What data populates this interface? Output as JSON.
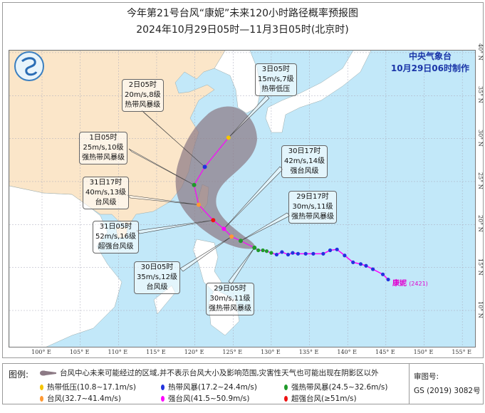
{
  "header": {
    "title": "今年第21号台风“康妮”未来120小时路径概率预报图",
    "subtitle": "2024年10月29日05时—11月3日05时(北京时)"
  },
  "agency": {
    "name": "中央气象台",
    "issued": "10月29日06时制作"
  },
  "storm": {
    "name": "康妮",
    "number": "(2421)"
  },
  "colors": {
    "sea": "#c2e8f9",
    "china_land": "#fbe6c9",
    "other_land": "#ffffff",
    "track": "#ff00ff",
    "cone": "#8c7a85",
    "tropical_depression": "#f5c400",
    "tropical_storm": "#2233dd",
    "severe_tropical_storm": "#1f9a2a",
    "typhoon": "#ff9933",
    "severe_typhoon": "#ff00ff",
    "super_typhoon": "#ee1111"
  },
  "axes": {
    "lon_labels": [
      "100° E",
      "105° E",
      "110° E",
      "115° E",
      "120° E",
      "125° E",
      "130° E",
      "135° E",
      "140° E",
      "145° E",
      "150° E",
      "155° E"
    ],
    "lon_values": [
      100,
      105,
      110,
      115,
      120,
      125,
      130,
      135,
      140,
      145,
      150,
      155
    ],
    "lat_labels": [
      "40° N",
      "35° N",
      "30° N",
      "25° N",
      "20° N",
      "15° N",
      "10° N"
    ],
    "lat_values": [
      40,
      35,
      30,
      25,
      20,
      15,
      10
    ]
  },
  "forecast": [
    {
      "time": "29日05时",
      "wind": "30m/s,11级",
      "level": "强热带风暴级",
      "cat": "severe_tropical_storm",
      "lon": 127.8,
      "lat": 17.3
    },
    {
      "time": "29日17时",
      "wind": "30m/s,11级",
      "level": "强热带风暴级",
      "cat": "severe_tropical_storm",
      "lon": 126.0,
      "lat": 18.1
    },
    {
      "time": "30日05时",
      "wind": "35m/s,12级",
      "level": "台风级",
      "cat": "typhoon",
      "lon": 124.8,
      "lat": 18.6
    },
    {
      "time": "30日17时",
      "wind": "42m/s,14级",
      "level": "强台风级",
      "cat": "severe_typhoon",
      "lon": 123.8,
      "lat": 19.5
    },
    {
      "time": "31日05时",
      "wind": "52m/s,16级",
      "level": "超强台风级",
      "cat": "super_typhoon",
      "lon": 122.4,
      "lat": 20.5
    },
    {
      "time": "31日17时",
      "wind": "40m/s,13级",
      "level": "台风级",
      "cat": "typhoon",
      "lon": 120.5,
      "lat": 22.3
    },
    {
      "time": "1日05时",
      "wind": "25m/s,10级",
      "level": "强热带风暴级",
      "cat": "severe_tropical_storm",
      "lon": 119.9,
      "lat": 24.6
    },
    {
      "time": "2日05时",
      "wind": "20m/s,8级",
      "level": "热带风暴级",
      "cat": "tropical_storm",
      "lon": 121.3,
      "lat": 26.7
    },
    {
      "time": "3日05时",
      "wind": "15m/s,7级",
      "level": "热带低压",
      "cat": "tropical_depression",
      "lon": 124.4,
      "lat": 30.1
    }
  ],
  "past_track": [
    {
      "lon": 145.3,
      "lat": 13.6,
      "cat": "tropical_storm"
    },
    {
      "lon": 144.6,
      "lat": 14.2,
      "cat": "tropical_storm"
    },
    {
      "lon": 143.3,
      "lat": 14.8,
      "cat": "tropical_storm"
    },
    {
      "lon": 142.4,
      "lat": 15.2,
      "cat": "tropical_storm"
    },
    {
      "lon": 141.7,
      "lat": 15.4,
      "cat": "tropical_storm"
    },
    {
      "lon": 140.7,
      "lat": 15.6,
      "cat": "tropical_storm"
    },
    {
      "lon": 139.6,
      "lat": 16.4,
      "cat": "tropical_storm"
    },
    {
      "lon": 138.6,
      "lat": 17.1,
      "cat": "tropical_storm"
    },
    {
      "lon": 137.7,
      "lat": 17.0,
      "cat": "tropical_storm"
    },
    {
      "lon": 136.8,
      "lat": 16.6,
      "cat": "tropical_storm"
    },
    {
      "lon": 135.5,
      "lat": 16.6,
      "cat": "tropical_storm"
    },
    {
      "lon": 134.5,
      "lat": 16.6,
      "cat": "tropical_storm"
    },
    {
      "lon": 133.5,
      "lat": 16.6,
      "cat": "tropical_storm"
    },
    {
      "lon": 132.8,
      "lat": 16.7,
      "cat": "tropical_storm"
    },
    {
      "lon": 132.2,
      "lat": 16.5,
      "cat": "tropical_storm"
    },
    {
      "lon": 131.4,
      "lat": 16.8,
      "cat": "tropical_storm"
    },
    {
      "lon": 130.7,
      "lat": 16.5,
      "cat": "tropical_storm"
    },
    {
      "lon": 130.0,
      "lat": 16.7,
      "cat": "severe_tropical_storm"
    },
    {
      "lon": 129.4,
      "lat": 16.9,
      "cat": "severe_tropical_storm"
    },
    {
      "lon": 128.9,
      "lat": 17.0,
      "cat": "severe_tropical_storm"
    },
    {
      "lon": 128.3,
      "lat": 17.0,
      "cat": "severe_tropical_storm"
    },
    {
      "lon": 127.8,
      "lat": 17.3,
      "cat": "severe_tropical_storm"
    }
  ],
  "legend": {
    "title": "图例:",
    "cone_desc": "台风中心未来可能经过的区域,并不表示台风大小及影响范围,灾害性天气也可能出现在阴影区以外",
    "items": [
      {
        "label": "热带低压(10.8~17.1m/s)",
        "cat": "tropical_depression"
      },
      {
        "label": "热带风暴(17.2~24.4m/s)",
        "cat": "tropical_storm"
      },
      {
        "label": "强热带风暴(24.5~32.6m/s)",
        "cat": "severe_tropical_storm"
      },
      {
        "label": "台风(32.7~41.4m/s)",
        "cat": "typhoon"
      },
      {
        "label": "强台风(41.5~50.9m/s)",
        "cat": "severe_typhoon"
      },
      {
        "label": "超强台风(≥51m/s)",
        "cat": "super_typhoon"
      }
    ],
    "review_label": "审图号:",
    "review_number": "GS (2019) 3082号"
  }
}
